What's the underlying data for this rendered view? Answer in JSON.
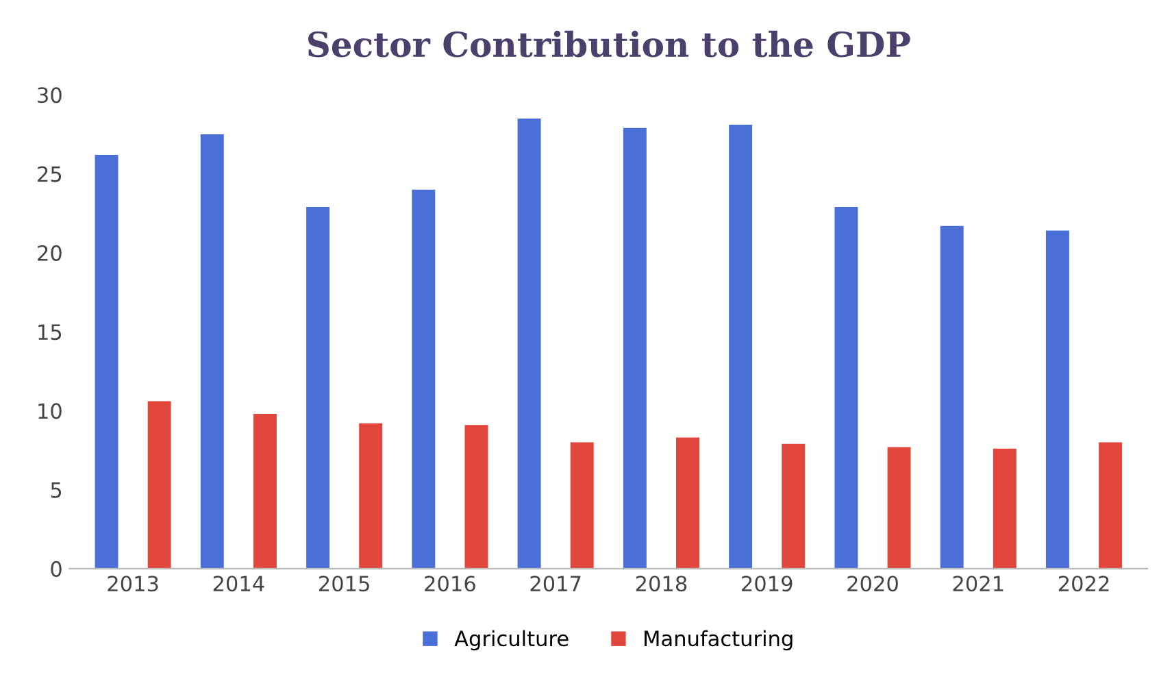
{
  "chart_data": {
    "type": "bar",
    "title": "Sector Contribution to the GDP",
    "categories": [
      "2013",
      "2014",
      "2015",
      "2016",
      "2017",
      "2018",
      "2019",
      "2020",
      "2021",
      "2022"
    ],
    "series": [
      {
        "name": "Agriculture",
        "color": "#4a6fd6",
        "values": [
          26.2,
          27.5,
          22.9,
          24.0,
          28.5,
          27.9,
          28.1,
          22.9,
          21.7,
          21.4
        ]
      },
      {
        "name": "Manufacturing",
        "color": "#e0463c",
        "values": [
          10.6,
          9.8,
          9.2,
          9.1,
          8.0,
          8.3,
          7.9,
          7.7,
          7.6,
          8.0
        ]
      }
    ],
    "ylim": [
      0,
      30
    ],
    "yticks": [
      0,
      5,
      10,
      15,
      20,
      25,
      30
    ],
    "grid": false,
    "legend": "bottom"
  }
}
